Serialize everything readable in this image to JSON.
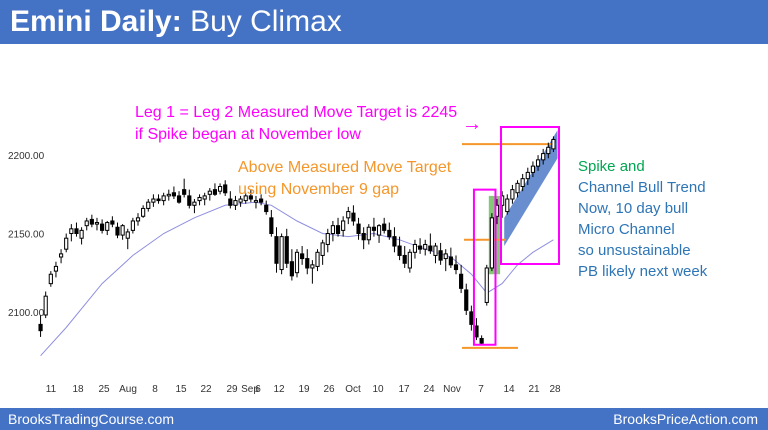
{
  "header": {
    "title_bold": "Emini Daily:",
    "title_rest": "Buy Climax"
  },
  "footer": {
    "left": "BrooksTradingCourse.com",
    "right": "BrooksPriceAction.com"
  },
  "annotations": {
    "measured_move": [
      "Leg 1 = Leg 2 Measured Move Target is 2245",
      "if Spike began at November low"
    ],
    "above_target": [
      "Above Measured Move Target",
      "using November 9 gap"
    ],
    "spike_label": "Spike and",
    "trend_notes": [
      "Channel Bull Trend",
      "Now, 10 day bull",
      "Micro Channel",
      "so unsustainable",
      "PB likely next week"
    ],
    "arrow": "→"
  },
  "colors": {
    "header_bg": "#4472c4",
    "magenta": "#ff00ff",
    "orange": "#f4962a",
    "green_text": "#00a651",
    "blue_text": "#2e75b6",
    "candle": "#000000",
    "ema": "#8f8fe0",
    "spike_fill": "#70c060",
    "channel_fill": "#4472c4"
  },
  "chart_data": {
    "type": "candlestick",
    "title": "Emini Daily: Buy Climax",
    "instrument": "Emini",
    "timeframe": "Daily",
    "x_tick_labels": [
      "11",
      "18",
      "25",
      "Aug",
      "8",
      "15",
      "22",
      "29",
      "Sep",
      "6",
      "12",
      "19",
      "26",
      "Oct",
      "10",
      "17",
      "24",
      "Nov",
      "7",
      "14",
      "21",
      "28"
    ],
    "y_tick_labels": [
      "2200.00",
      "2150.00",
      "2100.00"
    ],
    "ylim": [
      2068,
      2262
    ],
    "candles": [
      {
        "o": 2092,
        "h": 2098,
        "l": 2084,
        "c": 2088
      },
      {
        "o": 2098,
        "h": 2113,
        "l": 2096,
        "c": 2110
      },
      {
        "o": 2118,
        "h": 2126,
        "l": 2116,
        "c": 2124
      },
      {
        "o": 2126,
        "h": 2132,
        "l": 2122,
        "c": 2129
      },
      {
        "o": 2135,
        "h": 2140,
        "l": 2131,
        "c": 2137
      },
      {
        "o": 2140,
        "h": 2150,
        "l": 2138,
        "c": 2147
      },
      {
        "o": 2150,
        "h": 2156,
        "l": 2145,
        "c": 2153
      },
      {
        "o": 2153,
        "h": 2157,
        "l": 2148,
        "c": 2150
      },
      {
        "o": 2147,
        "h": 2154,
        "l": 2143,
        "c": 2152
      },
      {
        "o": 2155,
        "h": 2160,
        "l": 2152,
        "c": 2158
      },
      {
        "o": 2159,
        "h": 2162,
        "l": 2154,
        "c": 2156
      },
      {
        "o": 2156,
        "h": 2160,
        "l": 2152,
        "c": 2157
      },
      {
        "o": 2156,
        "h": 2159,
        "l": 2150,
        "c": 2152
      },
      {
        "o": 2152,
        "h": 2158,
        "l": 2149,
        "c": 2157
      },
      {
        "o": 2158,
        "h": 2161,
        "l": 2154,
        "c": 2156
      },
      {
        "o": 2154,
        "h": 2157,
        "l": 2147,
        "c": 2149
      },
      {
        "o": 2149,
        "h": 2156,
        "l": 2146,
        "c": 2155
      },
      {
        "o": 2147,
        "h": 2153,
        "l": 2140,
        "c": 2151
      },
      {
        "o": 2152,
        "h": 2160,
        "l": 2150,
        "c": 2158
      },
      {
        "o": 2158,
        "h": 2163,
        "l": 2155,
        "c": 2160
      },
      {
        "o": 2161,
        "h": 2168,
        "l": 2160,
        "c": 2166
      },
      {
        "o": 2166,
        "h": 2172,
        "l": 2164,
        "c": 2170
      },
      {
        "o": 2170,
        "h": 2175,
        "l": 2167,
        "c": 2172
      },
      {
        "o": 2172,
        "h": 2175,
        "l": 2169,
        "c": 2171
      },
      {
        "o": 2171,
        "h": 2176,
        "l": 2168,
        "c": 2174
      },
      {
        "o": 2174,
        "h": 2178,
        "l": 2171,
        "c": 2175
      },
      {
        "o": 2176,
        "h": 2180,
        "l": 2172,
        "c": 2174
      },
      {
        "o": 2174,
        "h": 2177,
        "l": 2169,
        "c": 2170
      },
      {
        "o": 2178,
        "h": 2185,
        "l": 2173,
        "c": 2175
      },
      {
        "o": 2174,
        "h": 2178,
        "l": 2166,
        "c": 2168
      },
      {
        "o": 2168,
        "h": 2172,
        "l": 2163,
        "c": 2170
      },
      {
        "o": 2171,
        "h": 2175,
        "l": 2168,
        "c": 2173
      },
      {
        "o": 2172,
        "h": 2176,
        "l": 2168,
        "c": 2174
      },
      {
        "o": 2175,
        "h": 2179,
        "l": 2171,
        "c": 2177
      },
      {
        "o": 2178,
        "h": 2182,
        "l": 2174,
        "c": 2175
      },
      {
        "o": 2177,
        "h": 2182,
        "l": 2175,
        "c": 2180
      },
      {
        "o": 2181,
        "h": 2184,
        "l": 2174,
        "c": 2176
      },
      {
        "o": 2172,
        "h": 2177,
        "l": 2166,
        "c": 2168
      },
      {
        "o": 2168,
        "h": 2174,
        "l": 2165,
        "c": 2171
      },
      {
        "o": 2170,
        "h": 2174,
        "l": 2167,
        "c": 2172
      },
      {
        "o": 2171,
        "h": 2176,
        "l": 2169,
        "c": 2174
      },
      {
        "o": 2174,
        "h": 2178,
        "l": 2170,
        "c": 2172
      },
      {
        "o": 2170,
        "h": 2174,
        "l": 2166,
        "c": 2171
      },
      {
        "o": 2172,
        "h": 2175,
        "l": 2168,
        "c": 2170
      },
      {
        "o": 2168,
        "h": 2171,
        "l": 2162,
        "c": 2164
      },
      {
        "o": 2160,
        "h": 2165,
        "l": 2148,
        "c": 2150
      },
      {
        "o": 2148,
        "h": 2154,
        "l": 2125,
        "c": 2131
      },
      {
        "o": 2127,
        "h": 2150,
        "l": 2124,
        "c": 2148
      },
      {
        "o": 2148,
        "h": 2153,
        "l": 2128,
        "c": 2131
      },
      {
        "o": 2132,
        "h": 2140,
        "l": 2120,
        "c": 2123
      },
      {
        "o": 2125,
        "h": 2140,
        "l": 2122,
        "c": 2138
      },
      {
        "o": 2137,
        "h": 2142,
        "l": 2130,
        "c": 2134
      },
      {
        "o": 2134,
        "h": 2140,
        "l": 2124,
        "c": 2128
      },
      {
        "o": 2128,
        "h": 2133,
        "l": 2118,
        "c": 2130
      },
      {
        "o": 2129,
        "h": 2140,
        "l": 2126,
        "c": 2138
      },
      {
        "o": 2136,
        "h": 2146,
        "l": 2130,
        "c": 2144
      },
      {
        "o": 2143,
        "h": 2153,
        "l": 2138,
        "c": 2150
      },
      {
        "o": 2150,
        "h": 2158,
        "l": 2145,
        "c": 2155
      },
      {
        "o": 2155,
        "h": 2160,
        "l": 2148,
        "c": 2150
      },
      {
        "o": 2152,
        "h": 2161,
        "l": 2148,
        "c": 2158
      },
      {
        "o": 2160,
        "h": 2167,
        "l": 2156,
        "c": 2164
      },
      {
        "o": 2163,
        "h": 2168,
        "l": 2155,
        "c": 2158
      },
      {
        "o": 2156,
        "h": 2160,
        "l": 2146,
        "c": 2150
      },
      {
        "o": 2150,
        "h": 2154,
        "l": 2140,
        "c": 2146
      },
      {
        "o": 2146,
        "h": 2156,
        "l": 2143,
        "c": 2154
      },
      {
        "o": 2154,
        "h": 2160,
        "l": 2148,
        "c": 2152
      },
      {
        "o": 2149,
        "h": 2156,
        "l": 2144,
        "c": 2155
      },
      {
        "o": 2156,
        "h": 2160,
        "l": 2150,
        "c": 2152
      },
      {
        "o": 2152,
        "h": 2157,
        "l": 2146,
        "c": 2148
      },
      {
        "o": 2148,
        "h": 2154,
        "l": 2138,
        "c": 2142
      },
      {
        "o": 2142,
        "h": 2148,
        "l": 2133,
        "c": 2136
      },
      {
        "o": 2136,
        "h": 2142,
        "l": 2128,
        "c": 2131
      },
      {
        "o": 2128,
        "h": 2140,
        "l": 2125,
        "c": 2138
      },
      {
        "o": 2138,
        "h": 2146,
        "l": 2134,
        "c": 2143
      },
      {
        "o": 2142,
        "h": 2147,
        "l": 2137,
        "c": 2140
      },
      {
        "o": 2140,
        "h": 2146,
        "l": 2136,
        "c": 2143
      },
      {
        "o": 2142,
        "h": 2150,
        "l": 2137,
        "c": 2139
      },
      {
        "o": 2136,
        "h": 2144,
        "l": 2131,
        "c": 2142
      },
      {
        "o": 2139,
        "h": 2144,
        "l": 2130,
        "c": 2133
      },
      {
        "o": 2134,
        "h": 2140,
        "l": 2126,
        "c": 2137
      },
      {
        "o": 2135,
        "h": 2141,
        "l": 2128,
        "c": 2130
      },
      {
        "o": 2130,
        "h": 2136,
        "l": 2124,
        "c": 2127
      },
      {
        "o": 2124,
        "h": 2130,
        "l": 2112,
        "c": 2115
      },
      {
        "o": 2114,
        "h": 2118,
        "l": 2098,
        "c": 2101
      },
      {
        "o": 2100,
        "h": 2104,
        "l": 2088,
        "c": 2092
      },
      {
        "o": 2091,
        "h": 2096,
        "l": 2082,
        "c": 2084
      },
      {
        "o": 2083,
        "h": 2085,
        "l": 2079,
        "c": 2080
      },
      {
        "o": 2106,
        "h": 2130,
        "l": 2104,
        "c": 2128
      },
      {
        "o": 2128,
        "h": 2163,
        "l": 2126,
        "c": 2160
      },
      {
        "o": 2161,
        "h": 2172,
        "l": 2156,
        "c": 2168
      },
      {
        "o": 2168,
        "h": 2177,
        "l": 2160,
        "c": 2174
      },
      {
        "o": 2164,
        "h": 2175,
        "l": 2162,
        "c": 2172
      },
      {
        "o": 2172,
        "h": 2181,
        "l": 2169,
        "c": 2178
      },
      {
        "o": 2176,
        "h": 2184,
        "l": 2173,
        "c": 2182
      },
      {
        "o": 2180,
        "h": 2188,
        "l": 2177,
        "c": 2185
      },
      {
        "o": 2185,
        "h": 2192,
        "l": 2181,
        "c": 2189
      },
      {
        "o": 2189,
        "h": 2196,
        "l": 2186,
        "c": 2193
      },
      {
        "o": 2193,
        "h": 2200,
        "l": 2190,
        "c": 2197
      },
      {
        "o": 2197,
        "h": 2204,
        "l": 2194,
        "c": 2201
      },
      {
        "o": 2201,
        "h": 2208,
        "l": 2198,
        "c": 2205
      },
      {
        "o": 2204,
        "h": 2212,
        "l": 2202,
        "c": 2210
      }
    ],
    "ema": [
      [
        0,
        2072
      ],
      [
        5,
        2090
      ],
      [
        12,
        2118
      ],
      [
        18,
        2136
      ],
      [
        24,
        2150
      ],
      [
        30,
        2160
      ],
      [
        36,
        2168
      ],
      [
        42,
        2170
      ],
      [
        45,
        2168
      ],
      [
        50,
        2158
      ],
      [
        55,
        2150
      ],
      [
        60,
        2148
      ],
      [
        65,
        2150
      ],
      [
        70,
        2146
      ],
      [
        75,
        2140
      ],
      [
        80,
        2135
      ],
      [
        84,
        2124
      ],
      [
        87,
        2112
      ],
      [
        90,
        2118
      ],
      [
        93,
        2130
      ],
      [
        96,
        2138
      ],
      [
        100,
        2146
      ]
    ],
    "levels": [
      {
        "name": "above_measured_move_target",
        "value": 2207,
        "color": "#f4962a"
      },
      {
        "name": "november_9_gap",
        "value": 2146,
        "color": "#f4962a"
      },
      {
        "name": "november_low",
        "value": 2077,
        "color": "#f4962a"
      }
    ],
    "measured_move_target": 2245
  }
}
